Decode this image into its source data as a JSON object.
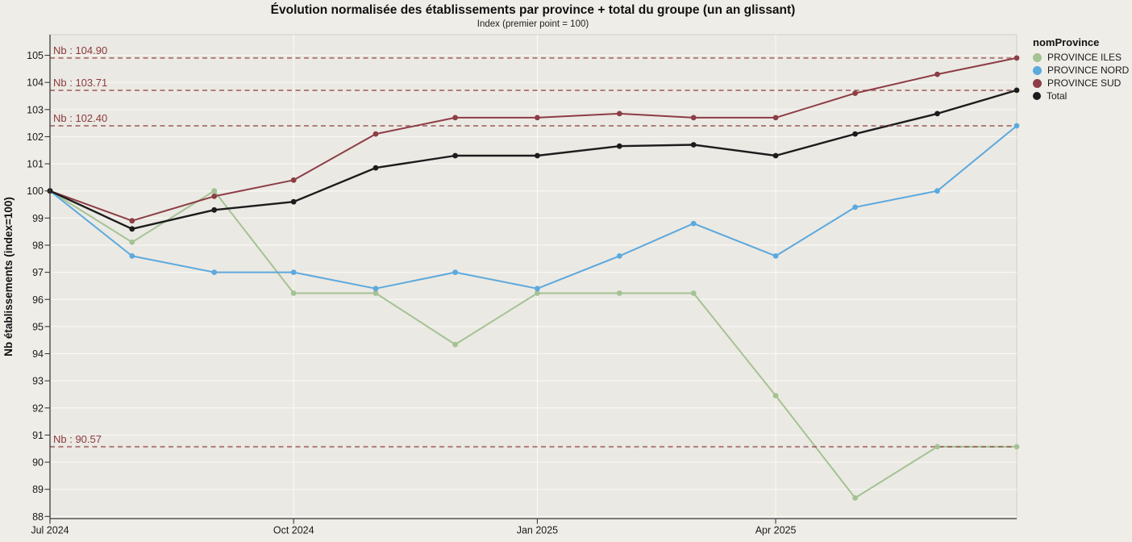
{
  "chart_data": {
    "type": "line",
    "title": "Évolution normalisée des établissements par province + total du groupe (un an glissant)",
    "subtitle": "Index (premier point = 100)",
    "ylabel": "Nb établissements (index=100)",
    "xlabel": "",
    "grid": true,
    "legend_title": "nomProvince",
    "legend_position": "top-right-outside",
    "background": "#efede8",
    "panel_background": "#ebe9e3",
    "gridline_color": "#f8f8f5",
    "axis_color": "#3a3a3a",
    "tick_label_color": "#1a1a1a",
    "ref_color": "#8b3a3e",
    "ylim": [
      87.9,
      105.8
    ],
    "y_ticks": [
      88,
      89,
      90,
      91,
      92,
      93,
      94,
      95,
      96,
      97,
      98,
      99,
      100,
      101,
      102,
      103,
      104,
      105
    ],
    "x_domain": [
      "2024-07-01",
      "2025-07-01"
    ],
    "x_ticks": [
      {
        "label": "Jul 2024",
        "date": "2024-07-01"
      },
      {
        "label": "Oct 2024",
        "date": "2024-10-01"
      },
      {
        "label": "Jan 2025",
        "date": "2025-01-01"
      },
      {
        "label": "Apr 2025",
        "date": "2025-04-01"
      }
    ],
    "x": [
      "2024-07-01",
      "2024-08-01",
      "2024-09-01",
      "2024-10-01",
      "2024-11-01",
      "2024-12-01",
      "2025-01-01",
      "2025-02-01",
      "2025-03-01",
      "2025-04-01",
      "2025-05-01",
      "2025-06-01",
      "2025-07-01"
    ],
    "series": [
      {
        "name": "PROVINCE ILES",
        "color": "#a4c294",
        "line_width": 2,
        "values": [
          100,
          98.11,
          100,
          96.23,
          96.23,
          94.34,
          96.23,
          96.23,
          96.23,
          92.45,
          88.68,
          90.57,
          90.57
        ]
      },
      {
        "name": "PROVINCE NORD",
        "color": "#5ca9de",
        "line_width": 2,
        "values": [
          100,
          97.6,
          97,
          97,
          96.4,
          97,
          96.4,
          97.6,
          98.8,
          97.6,
          99.4,
          100,
          102.4
        ]
      },
      {
        "name": "PROVINCE SUD",
        "color": "#8c3d45",
        "line_width": 2,
        "values": [
          100,
          98.9,
          99.8,
          100.4,
          102.1,
          102.7,
          102.7,
          102.85,
          102.7,
          102.7,
          103.6,
          104.3,
          104.9
        ]
      },
      {
        "name": "Total",
        "color": "#1c1c1c",
        "line_width": 2.4,
        "values": [
          100,
          98.6,
          99.3,
          99.6,
          100.85,
          101.3,
          101.3,
          101.65,
          101.7,
          101.3,
          102.1,
          102.85,
          103.71
        ]
      }
    ],
    "ref_lines": [
      {
        "label": "Nb : 104.90",
        "value": 104.9
      },
      {
        "label": "Nb : 103.71",
        "value": 103.71
      },
      {
        "label": "Nb : 102.40",
        "value": 102.4
      },
      {
        "label": "Nb : 90.57",
        "value": 90.57
      }
    ]
  }
}
